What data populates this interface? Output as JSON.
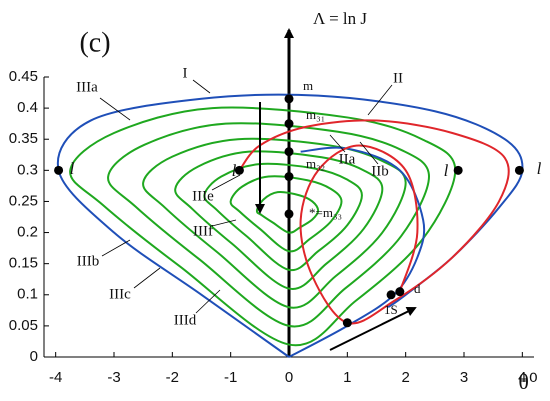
{
  "chart_data": {
    "type": "line",
    "title": "(c)",
    "y_axis_label": "Λ = ln J",
    "x_axis_label": "θ⁰",
    "xlim": [
      -4.2,
      4.2
    ],
    "ylim": [
      0,
      0.45
    ],
    "xticks": [
      -4,
      -3,
      -2,
      -1,
      0,
      1,
      2,
      3,
      4
    ],
    "yticks": [
      0,
      0.05,
      0.1,
      0.15,
      0.2,
      0.25,
      0.3,
      0.35,
      0.4,
      0.45
    ],
    "grid": false,
    "series": [
      {
        "color": "#1fa81f",
        "closed": true,
        "x": [
          0,
          -1.875,
          -3.188,
          -3.75,
          -3.0,
          -1.313,
          0.998,
          2.28,
          2.85,
          2.28,
          1.14
        ],
        "values": [
          0.02,
          0.146,
          0.244,
          0.3,
          0.36,
          0.4,
          0.385,
          0.35,
          0.3,
          0.188,
          0.09
        ]
      },
      {
        "color": "#1fa81f",
        "closed": true,
        "x": [
          0,
          -1.55,
          -2.635,
          -3.1,
          -2.48,
          -1.085,
          0.84,
          1.92,
          2.4,
          1.92,
          0.96
        ],
        "values": [
          0.05,
          0.158,
          0.242,
          0.29,
          0.341,
          0.375,
          0.362,
          0.333,
          0.29,
          0.194,
          0.11
        ]
      },
      {
        "color": "#1fa81f",
        "closed": true,
        "x": [
          0,
          -1.25,
          -2.125,
          -2.5,
          -2.0,
          -0.875,
          0.7,
          1.6,
          2.0,
          1.6,
          0.8
        ],
        "values": [
          0.08,
          0.17,
          0.24,
          0.28,
          0.322,
          0.35,
          0.34,
          0.315,
          0.28,
          0.2,
          0.13
        ]
      },
      {
        "color": "#1fa81f",
        "closed": true,
        "x": [
          0,
          -0.975,
          -1.658,
          -1.95,
          -1.56,
          -0.683,
          0.56,
          1.28,
          1.6,
          1.28,
          0.64
        ],
        "values": [
          0.11,
          0.182,
          0.238,
          0.27,
          0.306,
          0.33,
          0.321,
          0.3,
          0.27,
          0.206,
          0.15
        ]
      },
      {
        "color": "#1fa81f",
        "closed": true,
        "x": [
          0,
          -0.725,
          -1.233,
          -1.45,
          -1.16,
          -0.508,
          0.438,
          1.0,
          1.25,
          1.0,
          0.5
        ],
        "values": [
          0.14,
          0.194,
          0.236,
          0.26,
          0.29,
          0.31,
          0.303,
          0.285,
          0.26,
          0.212,
          0.17
        ]
      },
      {
        "color": "#1fa81f",
        "closed": true,
        "x": [
          0,
          -0.5,
          -0.85,
          -1.0,
          -0.8,
          -0.35,
          0.315,
          0.72,
          0.9,
          0.72,
          0.36
        ],
        "values": [
          0.17,
          0.206,
          0.234,
          0.25,
          0.274,
          0.29,
          0.284,
          0.27,
          0.25,
          0.218,
          0.19
        ]
      },
      {
        "color": "#1fa81f",
        "closed": true,
        "x": [
          0,
          -0.275,
          -0.468,
          -0.55,
          -0.44,
          -0.193,
          0.175,
          0.4,
          0.5,
          0.4,
          0.2
        ],
        "values": [
          0.2,
          0.216,
          0.228,
          0.235,
          0.253,
          0.265,
          0.26,
          0.25,
          0.235,
          0.221,
          0.209
        ]
      },
      {
        "color": "#1f4fb8",
        "closed": false,
        "x": [
          0,
          -1.5,
          -3.0,
          -3.95,
          -3.4,
          -1.5,
          0.5,
          2.5,
          3.7,
          4.0,
          3.6,
          2.8,
          2.0,
          1.7
        ],
        "values": [
          0,
          0.1,
          0.2,
          0.3,
          0.38,
          0.415,
          0.42,
          0.395,
          0.35,
          0.3,
          0.24,
          0.16,
          0.1,
          0.08
        ]
      },
      {
        "color": "#1f4fb8",
        "closed": false,
        "x": [
          0,
          1.0,
          1.8,
          2.2,
          2.3,
          1.9,
          1.0,
          0.2
        ],
        "values": [
          0,
          0.05,
          0.1,
          0.16,
          0.22,
          0.3,
          0.335,
          0.33
        ]
      },
      {
        "color": "#e0262b",
        "closed": false,
        "x": [
          -0.85,
          -0.5,
          0.3,
          1.5,
          2.8,
          3.7,
          3.6,
          2.8,
          1.8,
          1.0,
          0.4,
          0.2,
          0.5,
          1.2,
          2.0,
          2.2,
          1.9
        ],
        "values": [
          0.3,
          0.34,
          0.37,
          0.38,
          0.36,
          0.32,
          0.25,
          0.16,
          0.09,
          0.055,
          0.13,
          0.22,
          0.3,
          0.34,
          0.3,
          0.2,
          0.105
        ]
      },
      {
        "color": "#000000",
        "marker": "dot",
        "x": [
          -3.95,
          -0.85,
          2.9,
          3.95,
          0,
          0,
          0,
          0,
          0,
          1.75,
          1.9,
          1.0
        ],
        "values": [
          0.3,
          0.3,
          0.3,
          0.3,
          0.415,
          0.375,
          0.33,
          0.29,
          0.23,
          0.1,
          0.105,
          0.055
        ]
      }
    ],
    "annotations": [
      "I",
      "II",
      "IIIa",
      "IIIb",
      "IIIc",
      "IIId",
      "IIIe",
      "IIIf",
      "IIa",
      "IIb",
      "l",
      "l",
      "l",
      "l",
      "m",
      "m₃₁",
      "m₃₂",
      "*=m₃₃",
      "1S",
      "d"
    ]
  }
}
